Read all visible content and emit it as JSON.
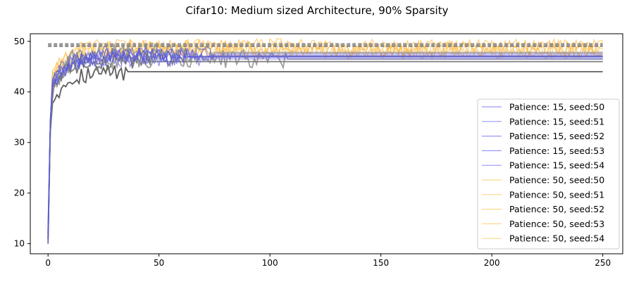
{
  "chart_data": {
    "type": "line",
    "title": "Cifar10: Medium sized Architecture, 90% Sparsity",
    "xlabel": "",
    "ylabel": "",
    "xlim": [
      -8,
      259
    ],
    "ylim": [
      8,
      51.5
    ],
    "xticks": [
      0,
      50,
      100,
      150,
      200,
      250
    ],
    "yticks": [
      10,
      20,
      30,
      40,
      50
    ],
    "grid": false,
    "legend_position": "lower-right",
    "colors": {
      "patience15": "#5555ee",
      "patience50": "#ffbb44",
      "gray_dark": "#555555",
      "gray_mid": "#777777",
      "gray_light": "#999999",
      "reference_dashed": "#888888"
    },
    "series": [
      {
        "name": "Patience: 15, seed:50",
        "group": "p15",
        "seed": 50,
        "stop": 68,
        "final": 46.5,
        "start": 12
      },
      {
        "name": "Patience: 15, seed:51",
        "group": "p15",
        "seed": 51,
        "stop": 60,
        "final": 47.0,
        "start": 11
      },
      {
        "name": "Patience: 15, seed:52",
        "group": "p15",
        "seed": 52,
        "stop": 75,
        "final": 47.5,
        "start": 13
      },
      {
        "name": "Patience: 15, seed:53",
        "group": "p15",
        "seed": 53,
        "stop": 55,
        "final": 46.8,
        "start": 10
      },
      {
        "name": "Patience: 15, seed:54",
        "group": "p15",
        "seed": 54,
        "stop": 72,
        "final": 47.2,
        "start": 12
      },
      {
        "name": "Patience: 50, seed:50",
        "group": "p50",
        "seed": 50,
        "stop": 250,
        "final": 48.2,
        "start": 10
      },
      {
        "name": "Patience: 50, seed:51",
        "group": "p50",
        "seed": 51,
        "stop": 250,
        "final": 48.5,
        "start": 11
      },
      {
        "name": "Patience: 50, seed:52",
        "group": "p50",
        "seed": 52,
        "stop": 250,
        "final": 48.8,
        "start": 10
      },
      {
        "name": "Patience: 50, seed:53",
        "group": "p50",
        "seed": 53,
        "stop": 250,
        "final": 48.0,
        "start": 12
      },
      {
        "name": "Patience: 50, seed:54",
        "group": "p50",
        "seed": 54,
        "stop": 250,
        "final": 49.0,
        "start": 10
      }
    ],
    "unlabeled_series": [
      {
        "color": "gray_dark",
        "stop": 35,
        "final": 44.0,
        "start": 11
      },
      {
        "color": "gray_mid",
        "stop": 62,
        "final": 47.0,
        "start": 12
      },
      {
        "color": "gray_light",
        "stop": 74,
        "final": 47.8,
        "start": 11
      },
      {
        "color": "gray_light",
        "stop": 107,
        "final": 46.5,
        "start": 12
      },
      {
        "color": "gray_mid",
        "stop": 45,
        "final": 46.0,
        "start": 10
      }
    ],
    "reference_lines": [
      {
        "y": 49.2,
        "x": [
          0,
          250
        ],
        "style": "dashed"
      },
      {
        "y": 49.5,
        "x": [
          0,
          250
        ],
        "style": "dashed"
      },
      {
        "y": 49.0,
        "x": [
          0,
          250
        ],
        "style": "dashed"
      }
    ]
  }
}
